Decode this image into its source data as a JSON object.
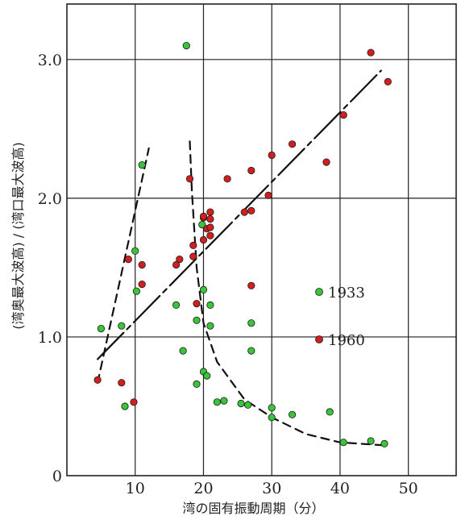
{
  "chart_data": {
    "type": "scatter",
    "title": "",
    "xlabel": "湾の固有振動周期（分）",
    "ylabel": "(湾奥最大波高) / (湾口最大波高)",
    "xlim": [
      0,
      57
    ],
    "ylim": [
      0,
      3.4
    ],
    "x_ticks": [
      "10",
      "20",
      "30",
      "40",
      "50"
    ],
    "y_ticks": [
      "0",
      "1.0",
      "2.0",
      "3.0"
    ],
    "grid": true,
    "legend_position": "center-right",
    "colors": {
      "1933": "#39c43a",
      "1960": "#d11f1f",
      "grid": "#222222",
      "curves": "#111111"
    },
    "series": [
      {
        "name": "1933",
        "points": [
          [
            5,
            1.06
          ],
          [
            8,
            1.08
          ],
          [
            8.5,
            0.5
          ],
          [
            10,
            1.62
          ],
          [
            10.2,
            1.33
          ],
          [
            11,
            2.24
          ],
          [
            17.5,
            3.1
          ],
          [
            16,
            1.23
          ],
          [
            17,
            0.9
          ],
          [
            19,
            1.12
          ],
          [
            19,
            0.66
          ],
          [
            20,
            0.75
          ],
          [
            19.8,
            1.81
          ],
          [
            20,
            1.34
          ],
          [
            21,
            1.23
          ],
          [
            21,
            1.08
          ],
          [
            20.5,
            0.72
          ],
          [
            22,
            0.53
          ],
          [
            23,
            0.54
          ],
          [
            25.5,
            0.52
          ],
          [
            26.5,
            0.51
          ],
          [
            27,
            1.1
          ],
          [
            27,
            0.9
          ],
          [
            30,
            0.49
          ],
          [
            30,
            0.42
          ],
          [
            33,
            0.44
          ],
          [
            38.5,
            0.46
          ],
          [
            40.5,
            0.24
          ],
          [
            44.5,
            0.25
          ],
          [
            46.5,
            0.23
          ]
        ]
      },
      {
        "name": "1960",
        "points": [
          [
            4.5,
            0.69
          ],
          [
            8,
            0.67
          ],
          [
            9.8,
            0.53
          ],
          [
            9,
            1.56
          ],
          [
            11,
            1.52
          ],
          [
            11,
            1.38
          ],
          [
            16,
            1.52
          ],
          [
            16.5,
            1.56
          ],
          [
            18,
            2.14
          ],
          [
            18.5,
            1.58
          ],
          [
            18.5,
            1.66
          ],
          [
            19,
            1.24
          ],
          [
            20,
            1.86
          ],
          [
            20,
            1.87
          ],
          [
            20.5,
            1.78
          ],
          [
            20,
            1.7
          ],
          [
            21,
            1.9
          ],
          [
            21,
            1.85
          ],
          [
            21,
            1.79
          ],
          [
            21,
            1.73
          ],
          [
            23.5,
            2.14
          ],
          [
            26,
            1.9
          ],
          [
            27,
            1.91
          ],
          [
            27,
            2.2
          ],
          [
            27,
            1.37
          ],
          [
            29.5,
            2.02
          ],
          [
            30,
            2.31
          ],
          [
            33,
            2.39
          ],
          [
            38,
            2.26
          ],
          [
            40.5,
            2.6
          ],
          [
            44.5,
            3.05
          ],
          [
            47,
            2.84
          ]
        ]
      }
    ],
    "trend_lines": [
      {
        "style": "solid",
        "points": [
          [
            4.5,
            0.84
          ],
          [
            46,
            2.92
          ]
        ]
      },
      {
        "style": "dashed",
        "points": [
          [
            4.5,
            0.67
          ],
          [
            12,
            2.36
          ]
        ]
      },
      {
        "style": "dashed",
        "points": [
          [
            18,
            2.41
          ],
          [
            18.3,
            2.05
          ],
          [
            19,
            1.5
          ],
          [
            20,
            1.1
          ],
          [
            22,
            0.82
          ],
          [
            26,
            0.55
          ],
          [
            30,
            0.42
          ],
          [
            35,
            0.3
          ],
          [
            40,
            0.24
          ],
          [
            46,
            0.22
          ]
        ]
      }
    ]
  }
}
